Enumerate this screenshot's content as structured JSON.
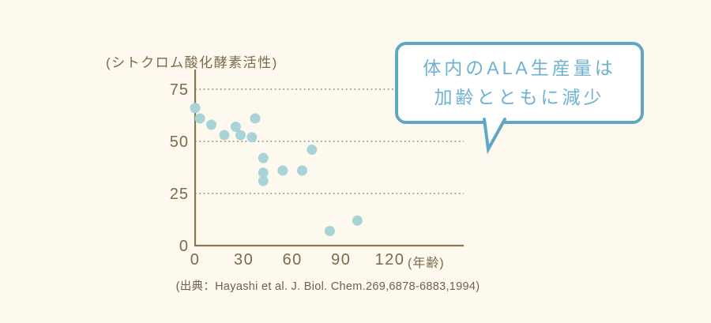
{
  "page": {
    "background": "#fdf9ee"
  },
  "chart_data": {
    "type": "scatter",
    "title": "",
    "ylabel": "(シトクロム酸化酵素活性)",
    "xlabel": "",
    "x_unit_label": "(年齢)",
    "x_ticks": [
      0,
      30,
      60,
      90,
      120
    ],
    "y_ticks": [
      0,
      25,
      50,
      75
    ],
    "xlim": [
      0,
      165
    ],
    "ylim": [
      0,
      84
    ],
    "grid": "horizontal dotted lines at y = 25, 50, 75",
    "legend": "none",
    "points": [
      [
        0,
        66
      ],
      [
        3,
        61
      ],
      [
        10,
        58
      ],
      [
        18,
        53
      ],
      [
        25,
        57
      ],
      [
        28,
        53
      ],
      [
        35,
        52
      ],
      [
        37,
        61
      ],
      [
        42,
        42
      ],
      [
        42,
        35
      ],
      [
        42,
        31
      ],
      [
        54,
        36
      ],
      [
        66,
        36
      ],
      [
        72,
        46
      ],
      [
        83,
        7
      ],
      [
        100,
        12
      ]
    ],
    "point_color": "#a9d4d7",
    "axis_color": "#8a7850",
    "label_color": "#7b6a4b",
    "grid_color": "#a3967a"
  },
  "callout": {
    "line1": "体内のALA生産量は",
    "line2": "加齢とともに減少",
    "border_color": "#61a7c5",
    "text_color": "#6fb1d1",
    "background": "#ffffff"
  },
  "citation": "(出典：Hayashi et al. J. Biol. Chem.269,6878-6883,1994)"
}
